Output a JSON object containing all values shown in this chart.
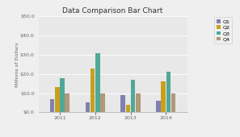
{
  "title": "Data Comparison Bar Chart",
  "ylabel": "Millions of Dollars",
  "years": [
    2011,
    2012,
    2013,
    2014
  ],
  "quarters": [
    "Q1",
    "Q2",
    "Q3",
    "Q4"
  ],
  "values": {
    "Q1": [
      7,
      5,
      9,
      6
    ],
    "Q2": [
      13,
      23,
      4,
      16
    ],
    "Q3": [
      18,
      31,
      17,
      21
    ],
    "Q4": [
      10,
      10,
      10,
      10
    ]
  },
  "colors": {
    "Q1": "#8080b0",
    "Q2": "#c8a020",
    "Q3": "#50a898",
    "Q4": "#b09878"
  },
  "ylim": [
    0,
    50
  ],
  "yticks": [
    0,
    10,
    20,
    30,
    40,
    50
  ],
  "background_color": "#efefef",
  "plot_bg": "#e8e8e8",
  "title_fontsize": 6.5,
  "axis_fontsize": 4.5,
  "tick_fontsize": 4.5,
  "legend_fontsize": 4.5
}
